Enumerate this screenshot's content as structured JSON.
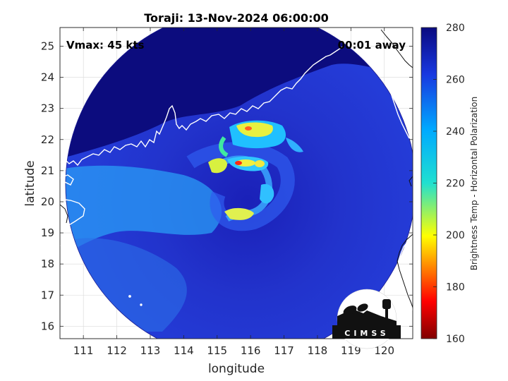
{
  "title": "Toraji: 13-Nov-2024 06:00:00",
  "annotations": {
    "vmax": "Vmax: 45 kts",
    "time_away": "00:01 away"
  },
  "axes": {
    "xlabel": "longitude",
    "ylabel": "latitude",
    "xlim": [
      110.3,
      120.85
    ],
    "ylim": [
      15.6,
      25.6
    ],
    "xticks": [
      111,
      112,
      113,
      114,
      115,
      116,
      117,
      118,
      119,
      120
    ],
    "yticks": [
      16,
      17,
      18,
      19,
      20,
      21,
      22,
      23,
      24,
      25
    ],
    "grid": true
  },
  "colorbar": {
    "label": "Brightness Temp - Horizontal Polarization",
    "range": [
      160,
      280
    ],
    "ticks": [
      160,
      180,
      200,
      220,
      240,
      260,
      280
    ],
    "colormap": "jet"
  },
  "map": {
    "swath_center": [
      115.7,
      20.55
    ],
    "storm_center": [
      115.65,
      21.2
    ],
    "background_color": "#2222c0"
  },
  "logo": {
    "text": "CIMSS"
  },
  "colors": {
    "swath_dark": "#1010a0",
    "swath_mid": "#2a36d8",
    "land": "#0a0a78",
    "warm_band": "#28b4ff",
    "convection_yellow": "#f0f040",
    "convection_red": "#ff3010"
  }
}
